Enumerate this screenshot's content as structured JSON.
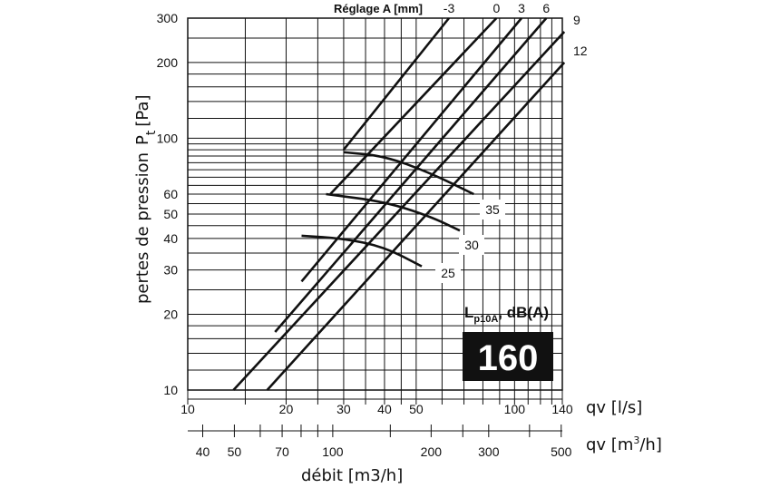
{
  "chart_data": {
    "type": "line",
    "y_axis": {
      "label": "pertes de pression",
      "symbol": "P",
      "symbol_sub": "t",
      "unit": "[Pa]",
      "scale": "log",
      "range": [
        10,
        300
      ],
      "tick_labels": [
        "10",
        "20",
        "30",
        "40",
        "50",
        "60",
        "100",
        "200",
        "300"
      ]
    },
    "x_axis_ls": {
      "label": "qv [l/s]",
      "scale": "log",
      "range": [
        10,
        140
      ],
      "tick_labels": [
        "10",
        "20",
        "30",
        "40",
        "50",
        "100",
        "140"
      ]
    },
    "x_axis_m3h": {
      "label_prefix": "qv [m",
      "label_sup": "3",
      "label_suffix": "/h]",
      "scale": "log",
      "tick_labels": [
        "40",
        "50",
        "70",
        "100",
        "200",
        "300",
        "500"
      ]
    },
    "x_title": "débit [m3/h]",
    "settings_heading": "Réglage A [mm]",
    "settings": [
      {
        "label": "-3",
        "points": [
          [
            30,
            90
          ],
          [
            63,
            300
          ]
        ]
      },
      {
        "label": "0",
        "points": [
          [
            27.3,
            60
          ],
          [
            88,
            300
          ]
        ]
      },
      {
        "label": "3",
        "points": [
          [
            22.3,
            27
          ],
          [
            105,
            300
          ]
        ]
      },
      {
        "label": "6",
        "points": [
          [
            18.5,
            17
          ],
          [
            125,
            300
          ]
        ]
      },
      {
        "label": "9",
        "points": [
          [
            13.8,
            10
          ],
          [
            142,
            265
          ]
        ]
      },
      {
        "label": "12",
        "points": [
          [
            17.5,
            10
          ],
          [
            142,
            200
          ]
        ]
      }
    ],
    "noise_curves": [
      {
        "label": "35",
        "points": [
          [
            30,
            88
          ],
          [
            40,
            85
          ],
          [
            55,
            73
          ],
          [
            75,
            60
          ]
        ]
      },
      {
        "label": "30",
        "points": [
          [
            26.5,
            60
          ],
          [
            40,
            56
          ],
          [
            55,
            49
          ],
          [
            68,
            43
          ]
        ]
      },
      {
        "label": "25",
        "points": [
          [
            22.3,
            41
          ],
          [
            30,
            40
          ],
          [
            40,
            37
          ],
          [
            52,
            31
          ]
        ]
      }
    ],
    "legend_title_main": "L",
    "legend_title_sub": "p10A",
    "legend_title_tail": ", dB(A)",
    "duct_size": "160"
  }
}
